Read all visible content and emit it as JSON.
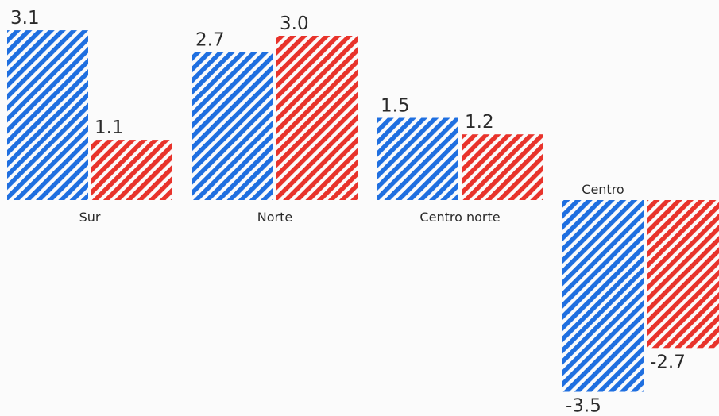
{
  "chart_data": {
    "type": "bar",
    "categories": [
      "Sur",
      "Norte",
      "Centro norte",
      "Centro"
    ],
    "series": [
      {
        "values": [
          3.1,
          2.7,
          1.5,
          -3.5
        ]
      },
      {
        "values": [
          1.1,
          3.0,
          1.2,
          -2.7
        ]
      }
    ],
    "value_labels": [
      [
        "3.1",
        "2.7",
        "1.5",
        "-3.5"
      ],
      [
        "1.1",
        "3.0",
        "1.2",
        "-2.7"
      ]
    ],
    "grid": false,
    "legend": "none"
  },
  "colors": {
    "series_blue": "#1f6fe0",
    "series_red": "#e8332b",
    "background": "#fbfbfb"
  }
}
